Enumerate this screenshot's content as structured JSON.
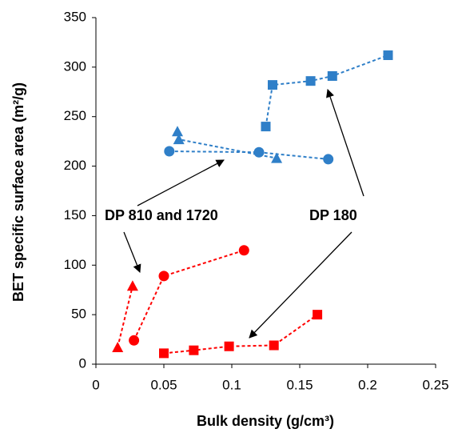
{
  "chart_data": {
    "type": "scatter",
    "xlabel": "Bulk density (g/cm³)",
    "ylabel": "BET specific surface area (m²/g)",
    "xlim": [
      0,
      0.25
    ],
    "xticks": [
      0,
      0.05,
      0.1,
      0.15,
      0.2,
      0.25
    ],
    "ylim": [
      0,
      350
    ],
    "yticks": [
      0,
      50,
      100,
      150,
      200,
      250,
      300,
      350
    ],
    "grid": false,
    "annotations": [
      "DP 810 and 1720",
      "DP 180"
    ],
    "series": [
      {
        "color": "#2f7fc8",
        "marker": "square",
        "x": [
          0.125,
          0.13,
          0.158,
          0.174,
          0.215
        ],
        "values": [
          240,
          282,
          286,
          291,
          312
        ]
      },
      {
        "color": "#2f7fc8",
        "marker": "triangle",
        "x": [
          0.06,
          0.061,
          0.133
        ],
        "values": [
          235,
          227,
          208
        ]
      },
      {
        "color": "#2f7fc8",
        "marker": "circle",
        "x": [
          0.054,
          0.12,
          0.171
        ],
        "values": [
          215,
          214,
          207
        ]
      },
      {
        "color": "#ff0000",
        "marker": "square",
        "x": [
          0.05,
          0.072,
          0.098,
          0.131,
          0.163
        ],
        "values": [
          11,
          14,
          18,
          19,
          50
        ]
      },
      {
        "color": "#ff0000",
        "marker": "triangle",
        "x": [
          0.016,
          0.027
        ],
        "values": [
          17,
          79
        ]
      },
      {
        "color": "#ff0000",
        "marker": "circle",
        "x": [
          0.028,
          0.05,
          0.109
        ],
        "values": [
          24,
          89,
          115
        ]
      }
    ]
  }
}
